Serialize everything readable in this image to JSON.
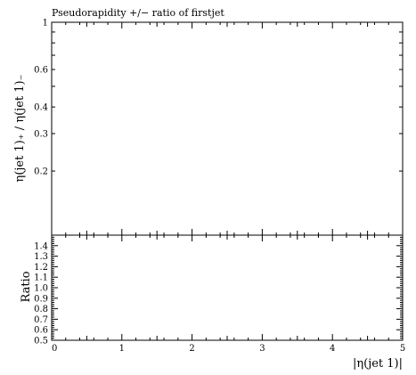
{
  "chart_data": [
    {
      "panel": "main",
      "type": "line",
      "title": "Pseudorapidity +/− ratio of firstjet",
      "ylabel": "η(jet 1)₊ / η(jet 1)₋",
      "yscale": "log",
      "ylim": [
        0.1,
        1.0
      ],
      "xlim": [
        0,
        5
      ],
      "ytick_labels": [
        {
          "value": 1,
          "label": "1"
        },
        {
          "value": 0.6,
          "label": "0.6"
        },
        {
          "value": 0.4,
          "label": "0.4"
        },
        {
          "value": 0.3,
          "label": "0.3"
        },
        {
          "value": 0.2,
          "label": "0.2"
        }
      ],
      "series": []
    },
    {
      "panel": "ratio",
      "type": "line",
      "ylabel": "Ratio",
      "xlabel": "|η(jet 1)|",
      "ylim": [
        0.5,
        1.5
      ],
      "xlim": [
        0,
        5
      ],
      "xtick_labels": [
        "0",
        "1",
        "2",
        "3",
        "4",
        "5"
      ],
      "ytick_labels": [
        "0.5",
        "0.6",
        "0.7",
        "0.8",
        "0.9",
        "1.0",
        "1.1",
        "1.2",
        "1.3",
        "1.4"
      ],
      "series": []
    }
  ]
}
